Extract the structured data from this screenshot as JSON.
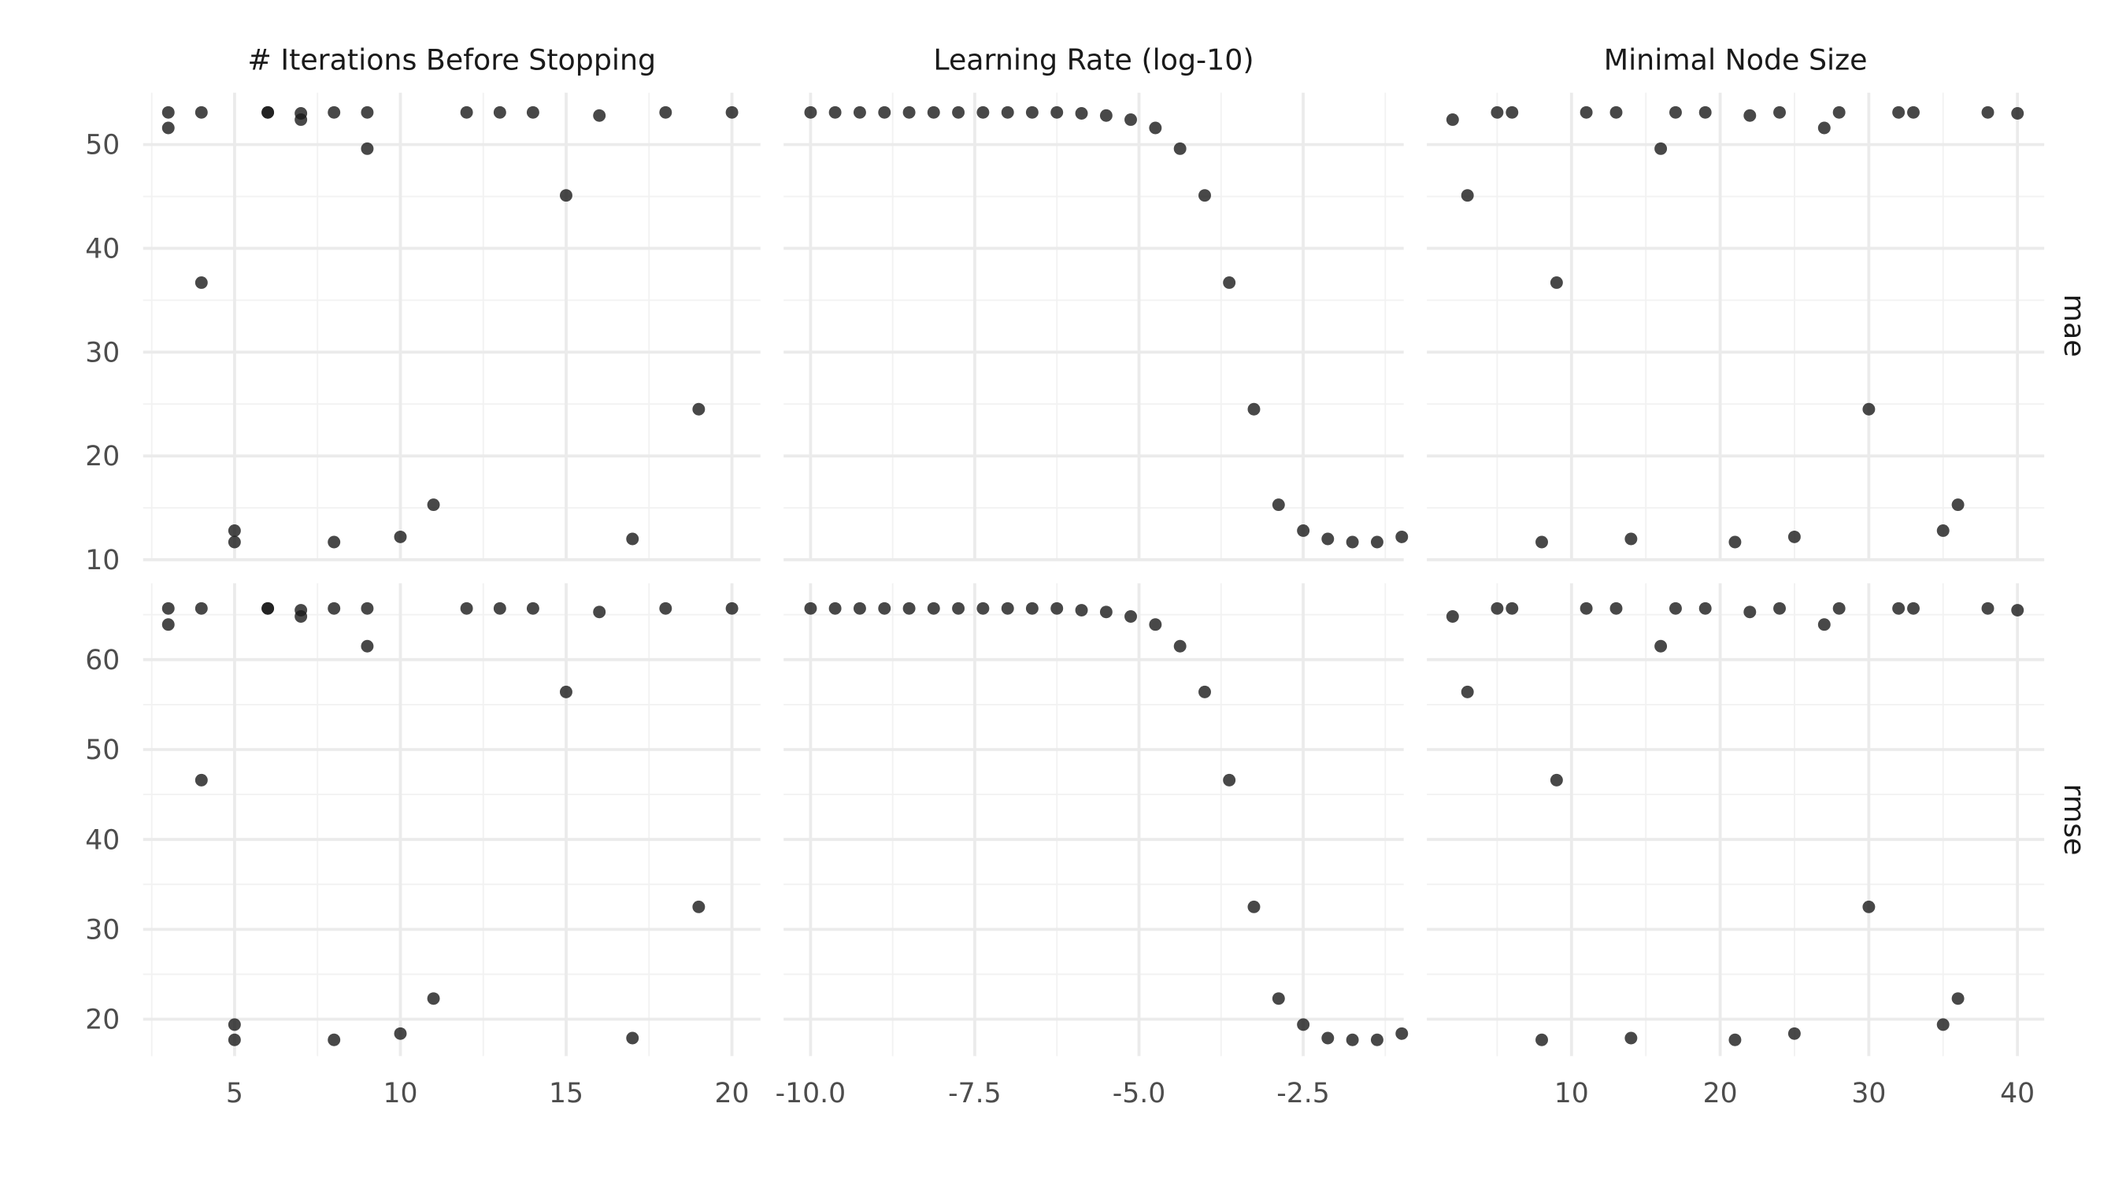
{
  "chart_data": {
    "type": "scatter",
    "title": "",
    "grid": true,
    "legend": "none",
    "point_color": "#333333",
    "columns": [
      {
        "key": "trees",
        "title": "# Iterations Before Stopping",
        "xlim": [
          2.24,
          20.86
        ],
        "xticks": [
          {
            "value": 5,
            "label": "5"
          },
          {
            "value": 10,
            "label": "10"
          },
          {
            "value": 15,
            "label": "15"
          },
          {
            "value": 20,
            "label": "20"
          }
        ],
        "xminor": [
          2.5,
          7.5,
          12.5,
          17.5
        ]
      },
      {
        "key": "learn_rate",
        "title": "Learning Rate (log-10)",
        "xlim": [
          -10.41,
          -0.97
        ],
        "xticks": [
          {
            "value": -10,
            "label": "-10.0"
          },
          {
            "value": -7.5,
            "label": "-7.5"
          },
          {
            "value": -5,
            "label": "-5.0"
          },
          {
            "value": -2.5,
            "label": "-2.5"
          }
        ],
        "xminor": [
          -8.75,
          -6.25,
          -3.75,
          -1.25
        ]
      },
      {
        "key": "min_n",
        "title": "Minimal Node Size",
        "xlim": [
          0.27,
          41.8
        ],
        "xticks": [
          {
            "value": 10,
            "label": "10"
          },
          {
            "value": 20,
            "label": "20"
          },
          {
            "value": 30,
            "label": "30"
          },
          {
            "value": 40,
            "label": "40"
          }
        ],
        "xminor": [
          5,
          15,
          25,
          35
        ]
      }
    ],
    "rows": [
      {
        "key": "mae",
        "label": "mae",
        "ylim": [
          10.1,
          55.0
        ],
        "yticks": [
          {
            "value": 10,
            "label": "10"
          },
          {
            "value": 20,
            "label": "20"
          },
          {
            "value": 30,
            "label": "30"
          },
          {
            "value": 40,
            "label": "40"
          },
          {
            "value": 50,
            "label": "50"
          }
        ],
        "yminor": [
          15,
          25,
          35,
          45
        ]
      },
      {
        "key": "rmse",
        "label": "rmse",
        "ylim": [
          15.9,
          68.5
        ],
        "yticks": [
          {
            "value": 20,
            "label": "20"
          },
          {
            "value": 30,
            "label": "30"
          },
          {
            "value": 40,
            "label": "40"
          },
          {
            "value": 50,
            "label": "50"
          },
          {
            "value": 60,
            "label": "60"
          }
        ],
        "yminor": [
          25,
          35,
          45,
          55,
          65
        ]
      }
    ],
    "points": [
      {
        "trees": 3,
        "learn_rate": -10.0,
        "min_n": 5,
        "mae": 53.1,
        "rmse": 65.7
      },
      {
        "trees": 4,
        "learn_rate": -9.625,
        "min_n": 6,
        "mae": 53.1,
        "rmse": 65.7
      },
      {
        "trees": 6,
        "learn_rate": -9.25,
        "min_n": 11,
        "mae": 53.1,
        "rmse": 65.7
      },
      {
        "trees": 6,
        "learn_rate": -8.875,
        "min_n": 13,
        "mae": 53.1,
        "rmse": 65.7
      },
      {
        "trees": 8,
        "learn_rate": -8.5,
        "min_n": 17,
        "mae": 53.1,
        "rmse": 65.7
      },
      {
        "trees": 9,
        "learn_rate": -8.125,
        "min_n": 19,
        "mae": 53.1,
        "rmse": 65.7
      },
      {
        "trees": 12,
        "learn_rate": -7.75,
        "min_n": 24,
        "mae": 53.1,
        "rmse": 65.7
      },
      {
        "trees": 13,
        "learn_rate": -7.375,
        "min_n": 28,
        "mae": 53.1,
        "rmse": 65.7
      },
      {
        "trees": 14,
        "learn_rate": -7.0,
        "min_n": 32,
        "mae": 53.1,
        "rmse": 65.7
      },
      {
        "trees": 18,
        "learn_rate": -6.625,
        "min_n": 33,
        "mae": 53.1,
        "rmse": 65.7
      },
      {
        "trees": 20,
        "learn_rate": -6.25,
        "min_n": 38,
        "mae": 53.1,
        "rmse": 65.7
      },
      {
        "trees": 7,
        "learn_rate": -5.875,
        "min_n": 40,
        "mae": 53.0,
        "rmse": 65.5
      },
      {
        "trees": 16,
        "learn_rate": -5.5,
        "min_n": 22,
        "mae": 52.8,
        "rmse": 65.3
      },
      {
        "trees": 7,
        "learn_rate": -5.125,
        "min_n": 2,
        "mae": 52.4,
        "rmse": 64.8
      },
      {
        "trees": 3,
        "learn_rate": -4.75,
        "min_n": 27,
        "mae": 51.6,
        "rmse": 63.9
      },
      {
        "trees": 9,
        "learn_rate": -4.375,
        "min_n": 16,
        "mae": 49.6,
        "rmse": 61.5
      },
      {
        "trees": 15,
        "learn_rate": -4.0,
        "min_n": 3,
        "mae": 45.1,
        "rmse": 56.4
      },
      {
        "trees": 4,
        "learn_rate": -3.625,
        "min_n": 9,
        "mae": 36.7,
        "rmse": 46.6
      },
      {
        "trees": 19,
        "learn_rate": -3.25,
        "min_n": 30,
        "mae": 24.5,
        "rmse": 32.5
      },
      {
        "trees": 11,
        "learn_rate": -2.875,
        "min_n": 36,
        "mae": 15.3,
        "rmse": 22.3
      },
      {
        "trees": 5,
        "learn_rate": -2.5,
        "min_n": 35,
        "mae": 12.8,
        "rmse": 19.4
      },
      {
        "trees": 17,
        "learn_rate": -2.125,
        "min_n": 14,
        "mae": 12.0,
        "rmse": 17.9
      },
      {
        "trees": 5,
        "learn_rate": -1.75,
        "min_n": 8,
        "mae": 11.7,
        "rmse": 17.7
      },
      {
        "trees": 8,
        "learn_rate": -1.375,
        "min_n": 21,
        "mae": 11.7,
        "rmse": 17.7
      },
      {
        "trees": 10,
        "learn_rate": -1.0,
        "min_n": 25,
        "mae": 12.2,
        "rmse": 18.4
      }
    ]
  }
}
